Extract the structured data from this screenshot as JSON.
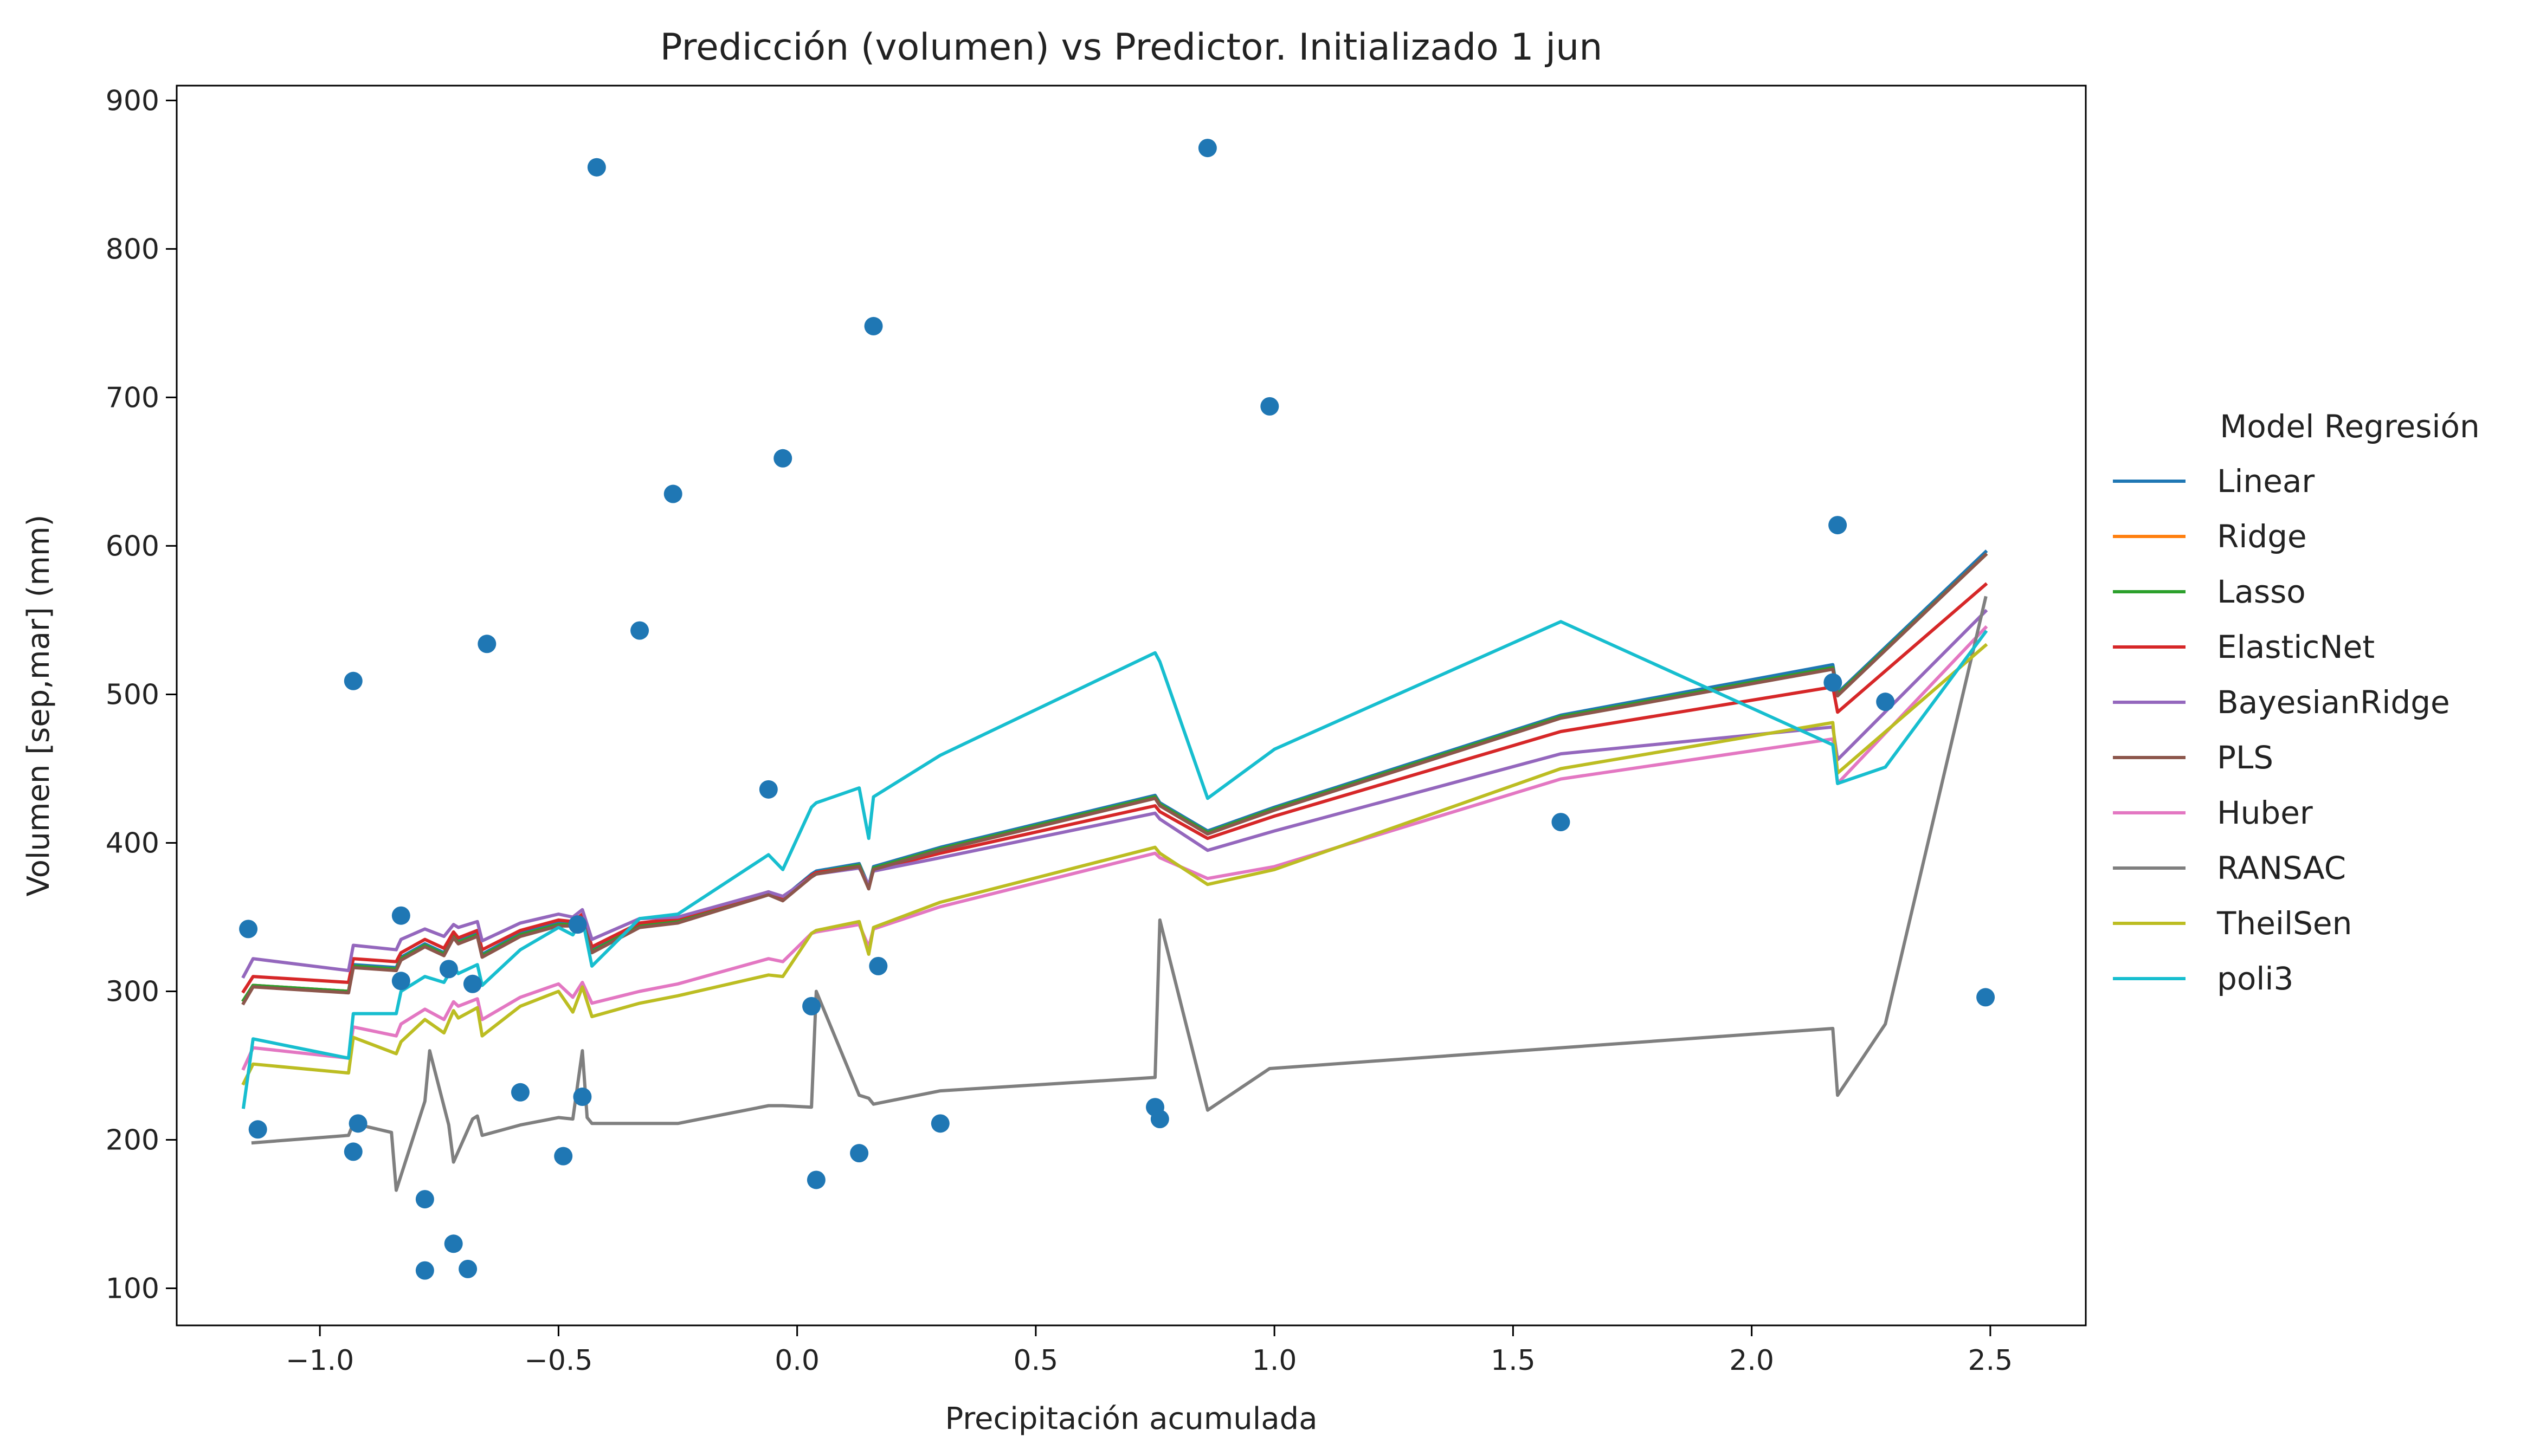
{
  "chart_data": {
    "type": "line",
    "title": "Predicción (volumen) vs Predictor. Initializado 1 jun",
    "xlabel": "Precipitación acumulada",
    "ylabel": "Volumen  [sep,mar]  (mm)",
    "xlim": [
      -1.3,
      2.7
    ],
    "ylim": [
      75,
      910
    ],
    "xticks": [
      -1.0,
      -0.5,
      0.0,
      0.5,
      1.0,
      1.5,
      2.0,
      2.5
    ],
    "xtick_labels": [
      "−1.0",
      "−0.5",
      "0.0",
      "0.5",
      "1.0",
      "1.5",
      "2.0",
      "2.5"
    ],
    "yticks": [
      100,
      200,
      300,
      400,
      500,
      600,
      700,
      800,
      900
    ],
    "ytick_labels": [
      "100",
      "200",
      "300",
      "400",
      "500",
      "600",
      "700",
      "800",
      "900"
    ],
    "grid": false,
    "legend": {
      "title": "Model Regresión",
      "placement": "outside-right"
    },
    "scatter": {
      "color": "#1f77b4",
      "points": [
        [
          -1.15,
          342
        ],
        [
          -1.13,
          207
        ],
        [
          -0.93,
          509
        ],
        [
          -0.93,
          192
        ],
        [
          -0.92,
          211
        ],
        [
          -0.83,
          351
        ],
        [
          -0.83,
          307
        ],
        [
          -0.78,
          160
        ],
        [
          -0.78,
          112
        ],
        [
          -0.73,
          315
        ],
        [
          -0.72,
          130
        ],
        [
          -0.69,
          113
        ],
        [
          -0.68,
          305
        ],
        [
          -0.65,
          534
        ],
        [
          -0.58,
          232
        ],
        [
          -0.49,
          189
        ],
        [
          -0.46,
          345
        ],
        [
          -0.45,
          229
        ],
        [
          -0.42,
          855
        ],
        [
          -0.33,
          543
        ],
        [
          -0.26,
          635
        ],
        [
          -0.06,
          436
        ],
        [
          -0.03,
          659
        ],
        [
          0.03,
          290
        ],
        [
          0.04,
          173
        ],
        [
          0.13,
          191
        ],
        [
          0.16,
          748
        ],
        [
          0.17,
          317
        ],
        [
          0.3,
          211
        ],
        [
          0.75,
          222
        ],
        [
          0.76,
          214
        ],
        [
          0.86,
          868
        ],
        [
          0.99,
          694
        ],
        [
          1.6,
          414
        ],
        [
          2.17,
          508
        ],
        [
          2.18,
          614
        ],
        [
          2.28,
          495
        ],
        [
          2.49,
          296
        ]
      ]
    },
    "series": [
      {
        "name": "Linear",
        "color": "#1f77b4",
        "x": [
          -1.16,
          -1.14,
          -0.94,
          -0.93,
          -0.84,
          -0.83,
          -0.78,
          -0.74,
          -0.72,
          -0.71,
          -0.67,
          -0.66,
          -0.58,
          -0.5,
          -0.47,
          -0.45,
          -0.43,
          -0.33,
          -0.25,
          -0.06,
          -0.03,
          0.03,
          0.04,
          0.13,
          0.15,
          0.16,
          0.3,
          0.75,
          0.76,
          0.86,
          1.0,
          1.6,
          2.17,
          2.18,
          2.49
        ],
        "y": [
          294,
          304,
          300,
          318,
          316,
          323,
          332,
          326,
          338,
          334,
          339,
          325,
          339,
          346,
          346,
          351,
          328,
          345,
          348,
          367,
          363,
          379,
          381,
          386,
          371,
          384,
          397,
          432,
          427,
          408,
          424,
          486,
          520,
          501,
          596
        ]
      },
      {
        "name": "Ridge",
        "color": "#ff7f0e",
        "x": [
          -1.16,
          -1.14,
          -0.94,
          -0.93,
          -0.84,
          -0.83,
          -0.78,
          -0.74,
          -0.72,
          -0.71,
          -0.67,
          -0.66,
          -0.58,
          -0.5,
          -0.47,
          -0.45,
          -0.43,
          -0.33,
          -0.25,
          -0.06,
          -0.03,
          0.03,
          0.04,
          0.13,
          0.15,
          0.16,
          0.3,
          0.75,
          0.76,
          0.86,
          1.0,
          1.6,
          2.17,
          2.18,
          2.49
        ],
        "y": [
          294,
          304,
          300,
          317,
          315,
          322,
          331,
          325,
          337,
          333,
          338,
          324,
          338,
          345,
          345,
          350,
          327,
          344,
          347,
          366,
          362,
          378,
          380,
          385,
          370,
          383,
          396,
          431,
          426,
          407,
          423,
          485,
          518,
          500,
          594
        ]
      },
      {
        "name": "Lasso",
        "color": "#2ca02c",
        "x": [
          -1.16,
          -1.14,
          -0.94,
          -0.93,
          -0.84,
          -0.83,
          -0.78,
          -0.74,
          -0.72,
          -0.71,
          -0.67,
          -0.66,
          -0.58,
          -0.5,
          -0.47,
          -0.45,
          -0.43,
          -0.33,
          -0.25,
          -0.06,
          -0.03,
          0.03,
          0.04,
          0.13,
          0.15,
          0.16,
          0.3,
          0.75,
          0.76,
          0.86,
          1.0,
          1.6,
          2.17,
          2.18,
          2.49
        ],
        "y": [
          294,
          304,
          300,
          317,
          315,
          322,
          331,
          325,
          337,
          333,
          338,
          324,
          338,
          345,
          345,
          350,
          327,
          344,
          347,
          366,
          362,
          378,
          380,
          385,
          370,
          383,
          396,
          431,
          426,
          407,
          423,
          485,
          518,
          500,
          594
        ]
      },
      {
        "name": "ElasticNet",
        "color": "#d62728",
        "x": [
          -1.16,
          -1.14,
          -0.94,
          -0.93,
          -0.84,
          -0.83,
          -0.78,
          -0.74,
          -0.72,
          -0.71,
          -0.67,
          -0.66,
          -0.58,
          -0.5,
          -0.47,
          -0.45,
          -0.43,
          -0.33,
          -0.25,
          -0.06,
          -0.03,
          0.03,
          0.04,
          0.13,
          0.15,
          0.16,
          0.3,
          0.75,
          0.76,
          0.86,
          1.0,
          1.6,
          2.17,
          2.18,
          2.49
        ],
        "y": [
          300,
          310,
          306,
          322,
          320,
          326,
          335,
          329,
          340,
          336,
          341,
          328,
          341,
          348,
          347,
          352,
          330,
          346,
          349,
          367,
          363,
          378,
          380,
          384,
          370,
          382,
          393,
          425,
          421,
          403,
          418,
          475,
          505,
          488,
          574
        ]
      },
      {
        "name": "BayesianRidge",
        "color": "#9467bd",
        "x": [
          -1.16,
          -1.14,
          -0.94,
          -0.93,
          -0.84,
          -0.83,
          -0.78,
          -0.74,
          -0.72,
          -0.71,
          -0.67,
          -0.66,
          -0.58,
          -0.5,
          -0.47,
          -0.45,
          -0.43,
          -0.33,
          -0.25,
          -0.06,
          -0.03,
          0.03,
          0.04,
          0.13,
          0.15,
          0.16,
          0.3,
          0.75,
          0.76,
          0.86,
          1.0,
          1.6,
          2.17,
          2.18,
          2.49
        ],
        "y": [
          310,
          322,
          314,
          331,
          328,
          335,
          342,
          337,
          345,
          343,
          347,
          334,
          346,
          352,
          350,
          355,
          335,
          349,
          350,
          367,
          364,
          377,
          379,
          383,
          372,
          381,
          390,
          420,
          416,
          395,
          408,
          460,
          478,
          456,
          556
        ]
      },
      {
        "name": "PLS",
        "color": "#8c564b",
        "x": [
          -1.16,
          -1.14,
          -0.94,
          -0.93,
          -0.84,
          -0.83,
          -0.78,
          -0.74,
          -0.72,
          -0.71,
          -0.67,
          -0.66,
          -0.58,
          -0.5,
          -0.47,
          -0.45,
          -0.43,
          -0.33,
          -0.25,
          -0.06,
          -0.03,
          0.03,
          0.04,
          0.13,
          0.15,
          0.16,
          0.3,
          0.75,
          0.76,
          0.86,
          1.0,
          1.6,
          2.17,
          2.18,
          2.49
        ],
        "y": [
          292,
          303,
          299,
          316,
          314,
          321,
          330,
          324,
          336,
          332,
          337,
          323,
          337,
          344,
          344,
          349,
          326,
          343,
          346,
          365,
          361,
          377,
          379,
          384,
          369,
          382,
          395,
          430,
          425,
          406,
          422,
          484,
          517,
          499,
          594
        ]
      },
      {
        "name": "Huber",
        "color": "#e377c2",
        "x": [
          -1.16,
          -1.14,
          -0.94,
          -0.93,
          -0.84,
          -0.83,
          -0.78,
          -0.74,
          -0.72,
          -0.71,
          -0.67,
          -0.66,
          -0.58,
          -0.5,
          -0.47,
          -0.45,
          -0.43,
          -0.33,
          -0.25,
          -0.06,
          -0.03,
          0.03,
          0.04,
          0.13,
          0.15,
          0.16,
          0.3,
          0.75,
          0.76,
          0.86,
          1.0,
          1.6,
          2.17,
          2.18,
          2.49
        ],
        "y": [
          248,
          262,
          255,
          276,
          270,
          278,
          288,
          281,
          293,
          290,
          295,
          281,
          296,
          305,
          296,
          306,
          292,
          300,
          305,
          322,
          320,
          339,
          340,
          345,
          330,
          342,
          357,
          393,
          390,
          376,
          384,
          443,
          470,
          440,
          545
        ]
      },
      {
        "name": "RANSAC",
        "color": "#7f7f7f",
        "x": [
          -1.14,
          -0.94,
          -0.93,
          -0.85,
          -0.84,
          -0.78,
          -0.77,
          -0.73,
          -0.72,
          -0.68,
          -0.67,
          -0.66,
          -0.58,
          -0.5,
          -0.47,
          -0.45,
          -0.44,
          -0.43,
          -0.25,
          -0.06,
          -0.03,
          0.03,
          0.04,
          0.13,
          0.15,
          0.16,
          0.3,
          0.75,
          0.76,
          0.86,
          0.99,
          1.6,
          2.17,
          2.18,
          2.28,
          2.49
        ],
        "y": [
          198,
          203,
          211,
          205,
          166,
          226,
          260,
          210,
          185,
          214,
          216,
          203,
          210,
          215,
          214,
          260,
          215,
          211,
          211,
          223,
          223,
          222,
          300,
          230,
          228,
          224,
          233,
          242,
          348,
          220,
          248,
          262,
          275,
          230,
          278,
          565
        ]
      },
      {
        "name": "TheilSen",
        "color": "#bcbd22",
        "x": [
          -1.16,
          -1.14,
          -0.94,
          -0.93,
          -0.84,
          -0.83,
          -0.78,
          -0.74,
          -0.72,
          -0.71,
          -0.67,
          -0.66,
          -0.58,
          -0.5,
          -0.47,
          -0.45,
          -0.43,
          -0.33,
          -0.25,
          -0.06,
          -0.03,
          0.03,
          0.04,
          0.13,
          0.15,
          0.16,
          0.3,
          0.75,
          0.76,
          0.86,
          1.0,
          1.6,
          2.17,
          2.18,
          2.49
        ],
        "y": [
          238,
          251,
          245,
          269,
          258,
          266,
          281,
          272,
          287,
          282,
          289,
          270,
          290,
          300,
          286,
          303,
          283,
          292,
          297,
          311,
          310,
          339,
          341,
          347,
          325,
          343,
          360,
          397,
          393,
          372,
          382,
          450,
          481,
          447,
          533
        ]
      },
      {
        "name": "poli3",
        "color": "#17becf",
        "x": [
          -1.16,
          -1.14,
          -0.94,
          -0.93,
          -0.84,
          -0.83,
          -0.78,
          -0.74,
          -0.72,
          -0.71,
          -0.67,
          -0.66,
          -0.58,
          -0.5,
          -0.47,
          -0.45,
          -0.43,
          -0.33,
          -0.25,
          -0.06,
          -0.03,
          0.03,
          0.04,
          0.13,
          0.15,
          0.16,
          0.3,
          0.75,
          0.76,
          0.86,
          1.0,
          1.6,
          2.17,
          2.18,
          2.28,
          2.49
        ],
        "y": [
          222,
          268,
          255,
          285,
          285,
          300,
          310,
          306,
          317,
          312,
          318,
          304,
          328,
          343,
          338,
          349,
          317,
          349,
          352,
          392,
          382,
          424,
          427,
          437,
          403,
          431,
          459,
          528,
          522,
          430,
          463,
          549,
          466,
          440,
          451,
          542
        ]
      }
    ]
  }
}
